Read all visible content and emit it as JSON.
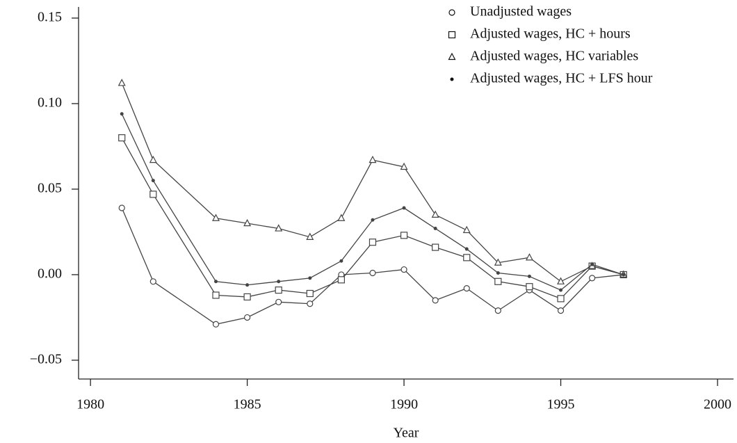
{
  "chart_data": {
    "type": "line",
    "xlabel": "Year",
    "x": [
      1981,
      1982,
      1984,
      1985,
      1986,
      1987,
      1988,
      1989,
      1990,
      1991,
      1992,
      1993,
      1994,
      1995,
      1996,
      1997
    ],
    "series": [
      {
        "name": "Unadjusted wages",
        "marker": "circle",
        "color": "#444444",
        "values": [
          0.039,
          -0.004,
          -0.029,
          -0.025,
          -0.016,
          -0.017,
          0.0,
          0.001,
          0.003,
          -0.015,
          -0.008,
          -0.021,
          -0.009,
          -0.021,
          -0.002,
          0.0
        ]
      },
      {
        "name": "Adjusted wages, HC + hours",
        "marker": "square",
        "color": "#444444",
        "values": [
          0.08,
          0.047,
          -0.012,
          -0.013,
          -0.009,
          -0.011,
          -0.003,
          0.019,
          0.023,
          0.016,
          0.01,
          -0.004,
          -0.007,
          -0.014,
          0.005,
          0.0
        ]
      },
      {
        "name": "Adjusted wages, HC variables",
        "marker": "triangle",
        "color": "#444444",
        "values": [
          0.112,
          0.067,
          0.033,
          0.03,
          0.027,
          0.022,
          0.033,
          0.067,
          0.063,
          0.035,
          0.026,
          0.007,
          0.01,
          -0.004,
          0.005,
          0.0
        ]
      },
      {
        "name": "Adjusted wages, HC + LFS hour",
        "marker": "dot",
        "color": "#444444",
        "values": [
          0.094,
          0.055,
          -0.004,
          -0.006,
          -0.004,
          -0.002,
          0.008,
          0.032,
          0.039,
          0.027,
          0.015,
          0.001,
          -0.001,
          -0.009,
          0.006,
          0.0
        ]
      }
    ],
    "xlim": [
      1979.62,
      2000.51
    ],
    "xticks": [
      1980,
      1985,
      1990,
      1995,
      2000
    ],
    "ylim": [
      -0.061,
      0.1565
    ],
    "yticks": [
      {
        "value": -0.05,
        "label": "−0.05"
      },
      {
        "value": 0,
        "label": "0.00"
      },
      0.05,
      {
        "value": 0.1,
        "label": "0.10"
      },
      0.15
    ],
    "legend": "top-right"
  }
}
